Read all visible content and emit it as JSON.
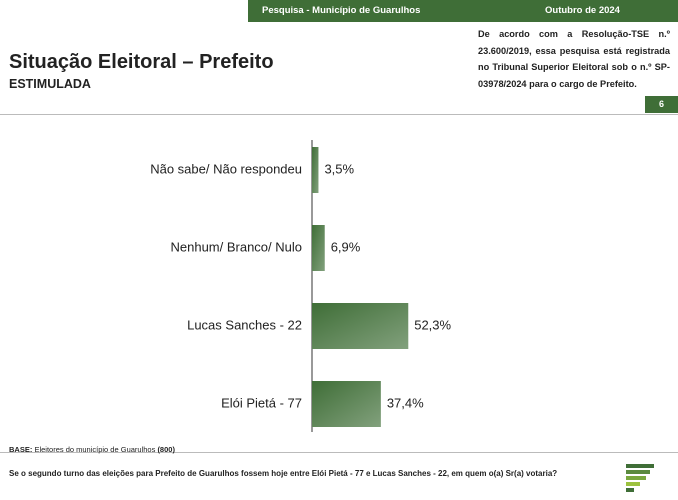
{
  "header": {
    "survey": "Pesquisa - Município de Guarulhos",
    "date": "Outubro de 2024"
  },
  "title": "Situação Eleitoral – Prefeito",
  "subtitle": "ESTIMULADA",
  "note": "De acordo com a Resolução-TSE n.º 23.600/2019, essa pesquisa está registrada no Tribunal Superior Eleitoral sob o n.º SP-03978/2024 para o cargo de Prefeito.",
  "page_number": "6",
  "chart_data": {
    "type": "hbar",
    "categories": [
      "Não sabe/ Não respondeu",
      "Nenhum/ Branco/ Nulo",
      "Lucas Sanches - 22",
      "Elói Pietá - 77"
    ],
    "values": [
      3.5,
      6.9,
      52.3,
      37.4
    ],
    "value_labels": [
      "3,5%",
      "6,9%",
      "52,3%",
      "37,4%"
    ],
    "color": "#3f6e37",
    "xlim": [
      0,
      100
    ]
  },
  "footer": {
    "base_label": "BASE:",
    "base_text": "Eleitores do município de Guarulhos",
    "base_count": "(800)",
    "question": "Se o segundo turno das eleições para Prefeito de Guarulhos fossem hoje entre Elói Pietá - 77 e Lucas Sanches - 22, em quem o(a) Sr(a) votaria?"
  }
}
